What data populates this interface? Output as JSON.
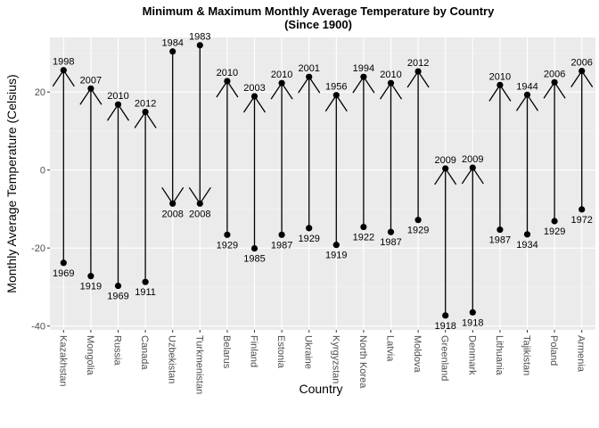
{
  "chart_data": {
    "type": "arrow-range",
    "title": "Minimum & Maximum Monthly Average Temperature by Country",
    "subtitle": "(Since 1900)",
    "xlabel": "Country",
    "ylabel": "Monthly Average Temperature (Celsius)",
    "ylim": [
      -41,
      34
    ],
    "yticks": [
      -40,
      -20,
      0,
      20
    ],
    "ytick_labels": [
      "-40",
      "-20",
      "0",
      "20"
    ],
    "grid": true,
    "categories": [
      "Kazakhstan",
      "Mongolia",
      "Russia",
      "Canada",
      "Uzbekistan",
      "Turkmenistan",
      "Belarus",
      "Finland",
      "Estonia",
      "Ukraine",
      "Kyrgyzstan",
      "North Korea",
      "Latvia",
      "Moldova",
      "Greenland",
      "Denmark",
      "Lithuania",
      "Tajikistan",
      "Poland",
      "Armenia"
    ],
    "start_values": [
      -23.8,
      -27.2,
      -29.7,
      -28.7,
      30.4,
      32.0,
      -16.6,
      -20.1,
      -16.6,
      -14.9,
      -19.2,
      -14.6,
      -15.9,
      -12.8,
      -37.3,
      -36.5,
      -15.3,
      -16.5,
      -13.1,
      -10.1
    ],
    "start_years": [
      "1969",
      "1919",
      "1969",
      "1911",
      "1984",
      "1983",
      "1929",
      "1985",
      "1987",
      "1929",
      "1919",
      "1922",
      "1987",
      "1929",
      "1918",
      "1918",
      "1987",
      "1934",
      "1929",
      "1972"
    ],
    "end_values": [
      25.6,
      20.9,
      16.8,
      14.9,
      -8.6,
      -8.6,
      22.8,
      18.9,
      22.3,
      23.9,
      19.2,
      23.9,
      22.3,
      25.3,
      0.4,
      0.6,
      21.8,
      19.3,
      22.5,
      25.4
    ],
    "end_years": [
      "1998",
      "2007",
      "2010",
      "2012",
      "2008",
      "2008",
      "2010",
      "2003",
      "2010",
      "2001",
      "1956",
      "1994",
      "2010",
      "2012",
      "2009",
      "2009",
      "2010",
      "1944",
      "2006",
      "2006"
    ]
  }
}
